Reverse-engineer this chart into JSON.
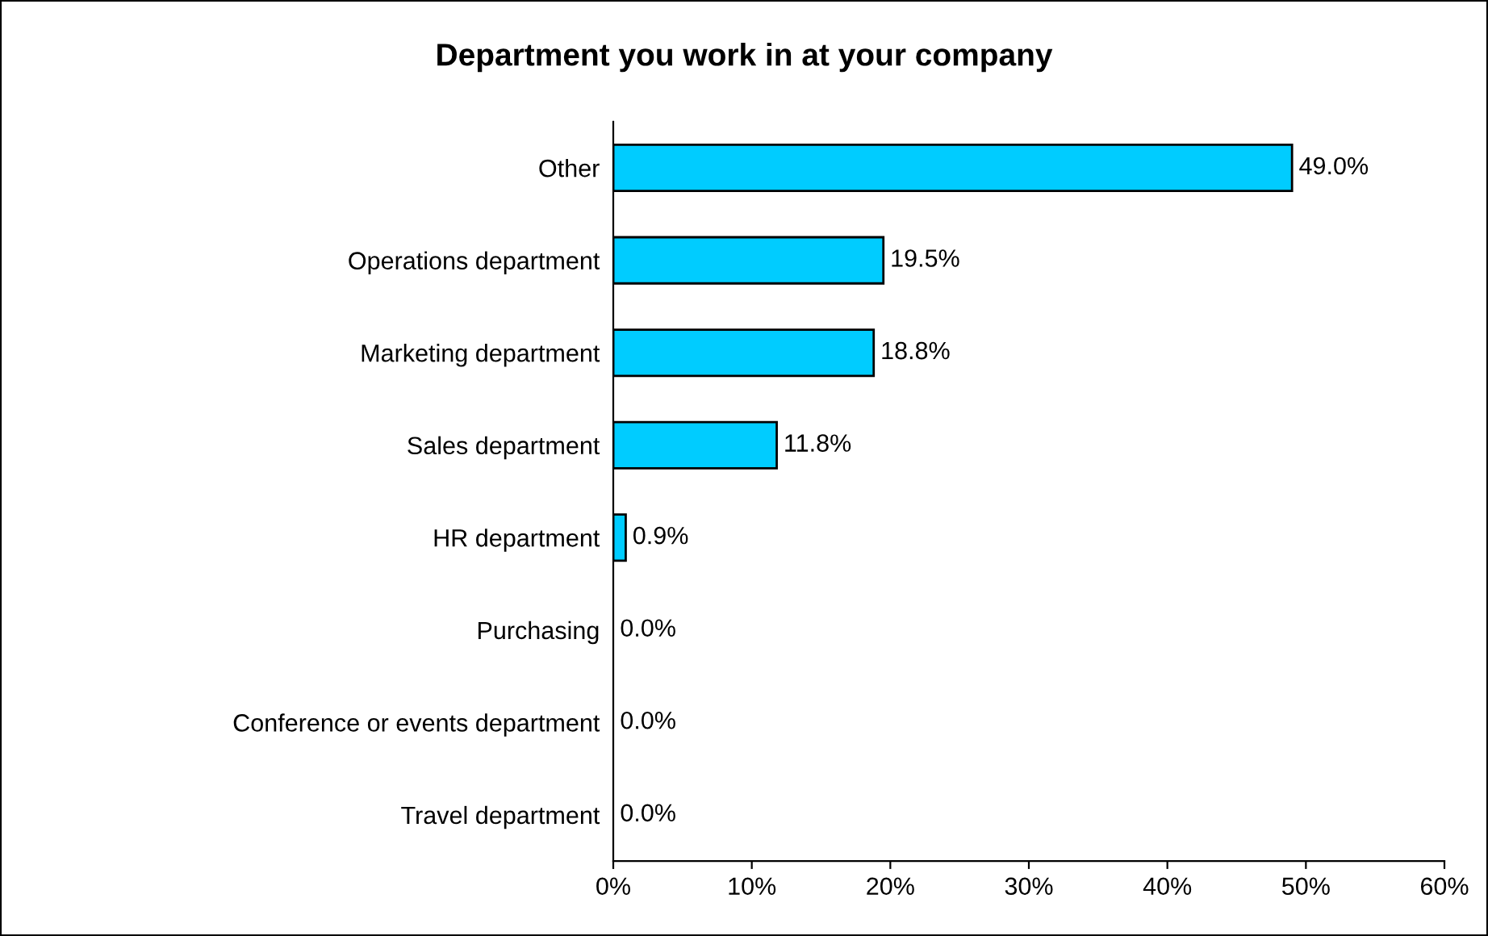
{
  "chart_data": {
    "type": "bar",
    "orientation": "horizontal",
    "title": "Department you work in at your company",
    "categories": [
      "Other",
      "Operations department",
      "Marketing department",
      "Sales department",
      "HR department",
      "Purchasing",
      "Conference or events department",
      "Travel department"
    ],
    "values": [
      49.0,
      19.5,
      18.8,
      11.8,
      0.9,
      0.0,
      0.0,
      0.0
    ],
    "value_labels": [
      "49.0%",
      "19.5%",
      "18.8%",
      "11.8%",
      "0.9%",
      "0.0%",
      "0.0%",
      "0.0%"
    ],
    "color": "#00ccff",
    "xlim": [
      0,
      60
    ],
    "xticks": [
      {
        "value": 0,
        "label": "0%"
      },
      {
        "value": 10,
        "label": "10%"
      },
      {
        "value": 20,
        "label": "20%"
      },
      {
        "value": 30,
        "label": "30%"
      },
      {
        "value": 40,
        "label": "40%"
      },
      {
        "value": 50,
        "label": "50%"
      },
      {
        "value": 60,
        "label": "60%"
      }
    ],
    "grid": false,
    "legend": false
  }
}
